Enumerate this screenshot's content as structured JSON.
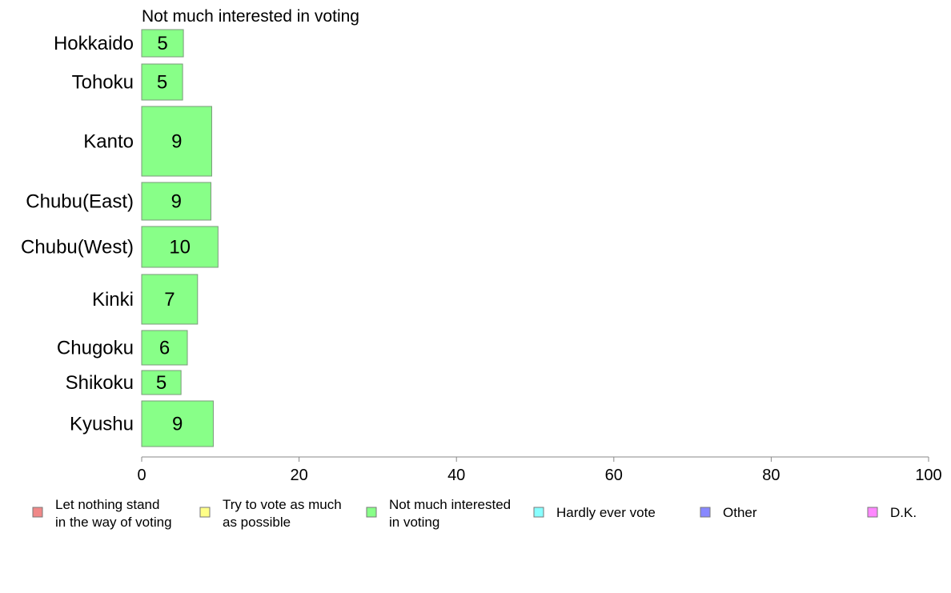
{
  "chart_data": {
    "type": "bar",
    "orientation": "horizontal",
    "title": "Not much interested in voting",
    "categories": [
      "Hokkaido",
      "Tohoku",
      "Kanto",
      "Chubu(East)",
      "Chubu(West)",
      "Kinki",
      "Chugoku",
      "Shikoku",
      "Kyushu"
    ],
    "series": [
      {
        "name": "Not much interested in voting",
        "values": [
          5.3,
          5.2,
          8.9,
          8.8,
          9.7,
          7.1,
          5.8,
          5.0,
          9.1
        ],
        "labels": [
          "5",
          "5",
          "9",
          "9",
          "10",
          "7",
          "6",
          "5",
          "9"
        ],
        "color": "#88ff88"
      }
    ],
    "xlim": [
      0,
      100
    ],
    "xticks": [
      "0",
      "20",
      "40",
      "60",
      "80",
      "100"
    ],
    "xlabel": "",
    "ylabel": "",
    "grid": false,
    "legend_position": "bottom",
    "legend": [
      {
        "label": "Let nothing stand in the way of voting",
        "lines": [
          "Let nothing stand",
          "in the way of voting"
        ],
        "color": "#f08888"
      },
      {
        "label": "Try to vote as much as possible",
        "lines": [
          "Try to vote as much",
          "as possible"
        ],
        "color": "#ffff88"
      },
      {
        "label": "Not much interested in voting",
        "lines": [
          "Not much interested",
          "in voting"
        ],
        "color": "#88ff88"
      },
      {
        "label": "Hardly ever vote",
        "lines": [
          "Hardly ever vote"
        ],
        "color": "#88ffff"
      },
      {
        "label": "Other",
        "lines": [
          "Other"
        ],
        "color": "#8888ff"
      },
      {
        "label": "D.K.",
        "lines": [
          "D.K."
        ],
        "color": "#ff88ff"
      }
    ]
  }
}
